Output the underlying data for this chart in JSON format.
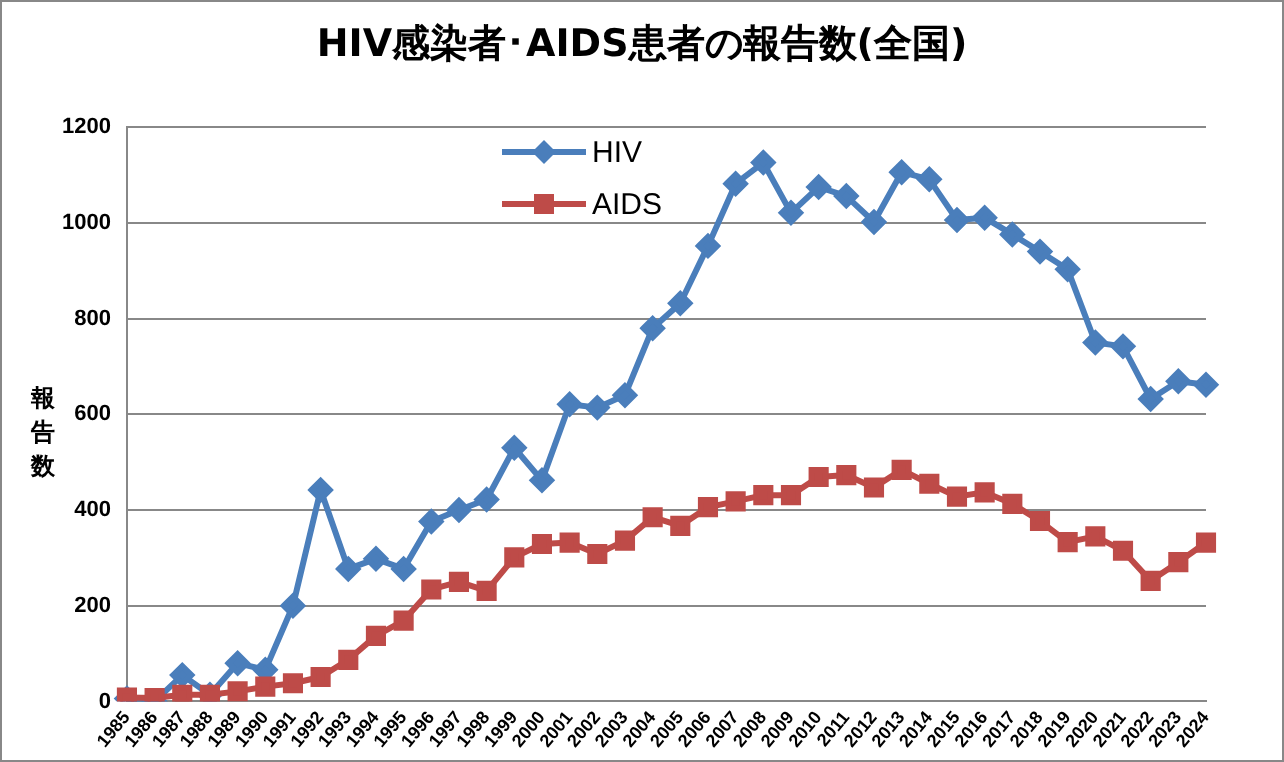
{
  "chart_data": {
    "type": "line",
    "title": "HIV感染者･AIDS患者の報告数(全国)",
    "ylabel": "報告数",
    "categories": [
      "1985",
      "1986",
      "1987",
      "1988",
      "1989",
      "1990",
      "1991",
      "1992",
      "1993",
      "1994",
      "1995",
      "1996",
      "1997",
      "1998",
      "1999",
      "2000",
      "2001",
      "2002",
      "2003",
      "2004",
      "2005",
      "2006",
      "2007",
      "2008",
      "2009",
      "2010",
      "2011",
      "2012",
      "2013",
      "2014",
      "2015",
      "2016",
      "2017",
      "2018",
      "2019",
      "2020",
      "2021",
      "2022",
      "2023",
      "2024"
    ],
    "series": [
      {
        "name": "HIV",
        "color": "#4a7ebb",
        "marker": "diamond",
        "values": [
          6,
          0,
          55,
          14,
          80,
          66,
          200,
          442,
          277,
          298,
          277,
          376,
          400,
          422,
          530,
          462,
          621,
          614,
          640,
          780,
          832,
          952,
          1082,
          1126,
          1021,
          1075,
          1056,
          1002,
          1106,
          1091,
          1006,
          1011,
          976,
          940,
          903,
          750,
          742,
          632,
          669,
          662
        ]
      },
      {
        "name": "AIDS",
        "color": "#be4b48",
        "marker": "square",
        "values": [
          8,
          7,
          14,
          14,
          21,
          31,
          38,
          51,
          87,
          137,
          169,
          234,
          250,
          231,
          301,
          329,
          332,
          308,
          336,
          385,
          367,
          406,
          418,
          431,
          431,
          469,
          473,
          447,
          484,
          455,
          428,
          437,
          413,
          377,
          333,
          345,
          315,
          252,
          291,
          332
        ]
      }
    ],
    "ylim": [
      0,
      1200
    ],
    "yticks": [
      0,
      200,
      400,
      600,
      800,
      1000,
      1200
    ],
    "grid": "y",
    "legend": "top"
  }
}
